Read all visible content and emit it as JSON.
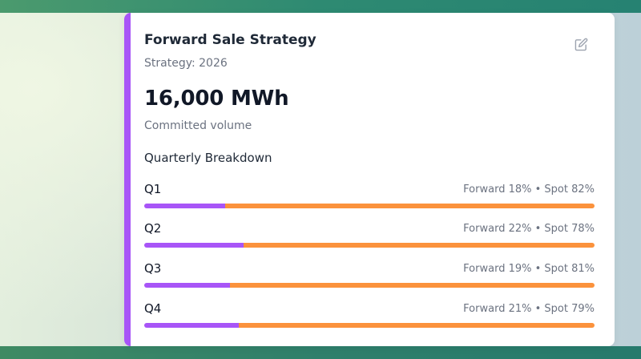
{
  "card": {
    "title": "Forward Sale Strategy",
    "subtitle": "Strategy: 2026",
    "volume": "16,000 MWh",
    "volume_label": "Committed volume",
    "section_heading": "Quarterly Breakdown",
    "edit_icon": "edit-icon"
  },
  "quarters": [
    {
      "label": "Q1",
      "split": "Forward 18% • Spot 82%",
      "forward_pct": 18,
      "spot_pct": 82
    },
    {
      "label": "Q2",
      "split": "Forward 22% • Spot 78%",
      "forward_pct": 22,
      "spot_pct": 78
    },
    {
      "label": "Q3",
      "split": "Forward 19% • Spot 81%",
      "forward_pct": 19,
      "spot_pct": 81
    },
    {
      "label": "Q4",
      "split": "Forward 21% • Spot 79%",
      "forward_pct": 21,
      "spot_pct": 79
    }
  ],
  "colors": {
    "accent": "#a855f7",
    "forward": "#a855f7",
    "spot": "#fb923c",
    "icon": "#9ca3af"
  }
}
